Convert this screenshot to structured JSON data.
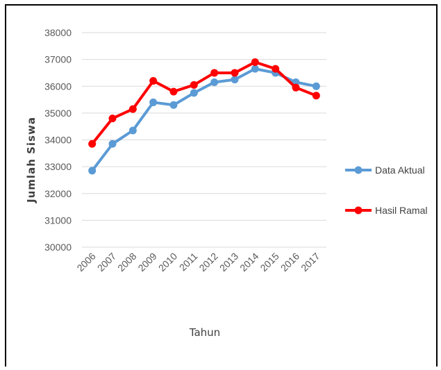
{
  "chart_data": {
    "type": "line",
    "title": "",
    "xlabel": "Tahun",
    "ylabel": "Jumlah Siswa",
    "categories": [
      "2006",
      "2007",
      "2008",
      "2009",
      "2010",
      "2011",
      "2012",
      "2013",
      "2014",
      "2015",
      "2016",
      "2017"
    ],
    "yticks": [
      "30000",
      "31000",
      "32000",
      "33000",
      "34000",
      "35000",
      "36000",
      "37000",
      "38000"
    ],
    "ylim": [
      30000,
      38000
    ],
    "grid": true,
    "legend_position": "right",
    "series": [
      {
        "name": "Data Aktual",
        "color": "#5b9bd5",
        "values": [
          32850,
          33850,
          34350,
          35400,
          35300,
          35750,
          36150,
          36250,
          36650,
          36500,
          36150,
          36000
        ]
      },
      {
        "name": "Hasil Ramal",
        "color": "#ff0000",
        "values": [
          33850,
          34800,
          35150,
          36200,
          35800,
          36050,
          36500,
          36500,
          36900,
          36650,
          35950,
          35650
        ]
      }
    ]
  }
}
